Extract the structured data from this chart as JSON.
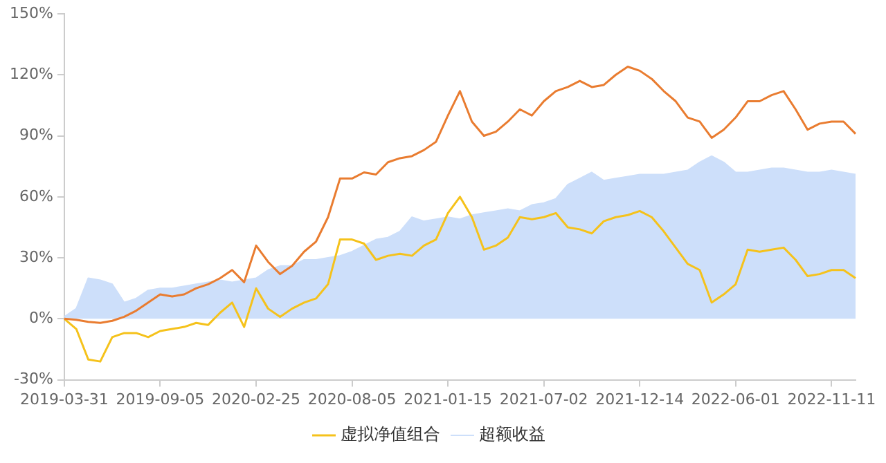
{
  "chart_data": {
    "type": "line",
    "categories": [
      "2019-03-31",
      null,
      null,
      null,
      null,
      null,
      null,
      null,
      "2019-09-05",
      null,
      null,
      null,
      null,
      null,
      null,
      null,
      "2020-02-25",
      null,
      null,
      null,
      null,
      null,
      null,
      null,
      "2020-08-05",
      null,
      null,
      null,
      null,
      null,
      null,
      null,
      "2021-01-15",
      null,
      null,
      null,
      null,
      null,
      null,
      null,
      "2021-07-02",
      null,
      null,
      null,
      null,
      null,
      null,
      null,
      "2021-12-14",
      null,
      null,
      null,
      null,
      null,
      null,
      null,
      "2022-06-01",
      null,
      null,
      null,
      null,
      null,
      null,
      null,
      "2022-11-11",
      null,
      null
    ],
    "series": [
      {
        "color": "#e97c30",
        "values": [
          0,
          -0.5,
          -1.5,
          -2,
          -1,
          1,
          4,
          8,
          12,
          11,
          12,
          15,
          17,
          20,
          24,
          18,
          36,
          28,
          22,
          26,
          33,
          38,
          50,
          69,
          69,
          72,
          71,
          77,
          79,
          80,
          83,
          87,
          100,
          112,
          97,
          90,
          92,
          97,
          103,
          100,
          107,
          112,
          114,
          117,
          114,
          115,
          120,
          124,
          122,
          118,
          112,
          107,
          99,
          97,
          89,
          93,
          99,
          107,
          107,
          110,
          112,
          103,
          93,
          96,
          97,
          97,
          91
        ]
      },
      {
        "name": "虚拟净值组合",
        "color": "#f5c21b",
        "values": [
          0,
          -5,
          -20,
          -21,
          -9,
          -7,
          -7,
          -9,
          -6,
          -5,
          -4,
          -2,
          -3,
          3,
          8,
          -4,
          15,
          5,
          1,
          5,
          8,
          10,
          17,
          39,
          39,
          37,
          29,
          31,
          32,
          31,
          36,
          39,
          52,
          60,
          50,
          34,
          36,
          40,
          50,
          49,
          50,
          52,
          45,
          44,
          42,
          48,
          50,
          51,
          53,
          50,
          43,
          35,
          27,
          24,
          8,
          12,
          17,
          34,
          33,
          34,
          35,
          29,
          21,
          22,
          24,
          24,
          20
        ]
      },
      {
        "type": "area",
        "name": "超额收益",
        "color": "#cddffa",
        "values": [
          1,
          5,
          20,
          19,
          17,
          8,
          10,
          14,
          15,
          15,
          16,
          17,
          18,
          19,
          18,
          19,
          20,
          24,
          26,
          26,
          29,
          29,
          30,
          31,
          33,
          36,
          39,
          40,
          43,
          50,
          48,
          49,
          50,
          49,
          51,
          52,
          53,
          54,
          53,
          56,
          57,
          59,
          66,
          69,
          72,
          68,
          69,
          70,
          71,
          71,
          71,
          72,
          73,
          77,
          80,
          77,
          72,
          72,
          73,
          74,
          74,
          73,
          72,
          72,
          73,
          72,
          71
        ]
      }
    ],
    "ylim": [
      -30,
      150
    ],
    "yticks": [
      {
        "value": -30,
        "label": "-30%"
      },
      {
        "value": 0,
        "label": "0%"
      },
      {
        "value": 30,
        "label": "30%"
      },
      {
        "value": 60,
        "label": "60%"
      },
      {
        "value": 90,
        "label": "90%"
      },
      {
        "value": 120,
        "label": "120%"
      },
      {
        "value": 150,
        "label": "150%"
      }
    ],
    "grid": false,
    "legend": "bottom",
    "marker": "none"
  }
}
